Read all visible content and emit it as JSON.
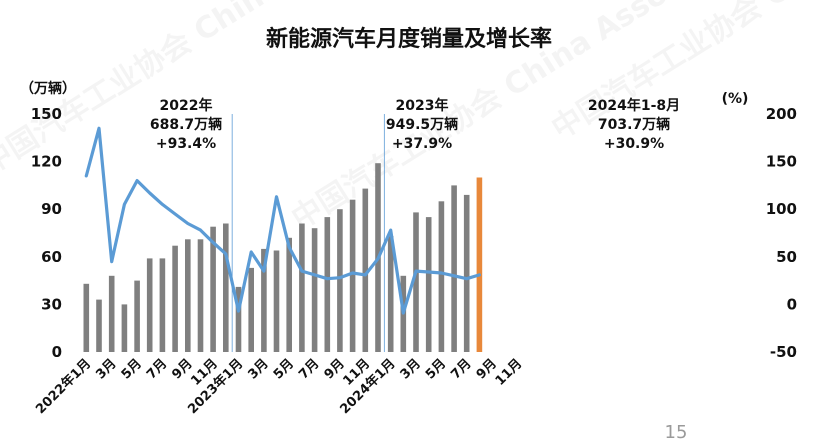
{
  "page_number": "15",
  "chart_data": {
    "type": "bar",
    "title": "新能源汽车月度销量及增长率",
    "left_unit": "（万辆）",
    "right_unit": "(%)",
    "left_axis": {
      "ticks": [
        "150",
        "120",
        "90",
        "60",
        "30",
        "0"
      ],
      "range": [
        0,
        150
      ]
    },
    "right_axis": {
      "ticks": [
        "200",
        "150",
        "100",
        "50",
        "0",
        "-50"
      ],
      "range": [
        -50,
        200
      ]
    },
    "x_tick_labels": [
      "2022年1月",
      "3月",
      "5月",
      "7月",
      "9月",
      "11月",
      "2023年1月",
      "3月",
      "5月",
      "7月",
      "9月",
      "11月",
      "2024年1月",
      "3月",
      "5月",
      "7月",
      "9月",
      "11月"
    ],
    "months": [
      "2022-01",
      "2022-02",
      "2022-03",
      "2022-04",
      "2022-05",
      "2022-06",
      "2022-07",
      "2022-08",
      "2022-09",
      "2022-10",
      "2022-11",
      "2022-12",
      "2023-01",
      "2023-02",
      "2023-03",
      "2023-04",
      "2023-05",
      "2023-06",
      "2023-07",
      "2023-08",
      "2023-09",
      "2023-10",
      "2023-11",
      "2023-12",
      "2024-01",
      "2024-02",
      "2024-03",
      "2024-04",
      "2024-05",
      "2024-06",
      "2024-07",
      "2024-08",
      "2024-09",
      "2024-10",
      "2024-11",
      "2024-12"
    ],
    "series": [
      {
        "type": "bar",
        "values": [
          43,
          33,
          48,
          30,
          45,
          59,
          59,
          67,
          71,
          71,
          79,
          81,
          41,
          53,
          65,
          64,
          72,
          81,
          78,
          85,
          90,
          96,
          103,
          119,
          73,
          48,
          88,
          85,
          95,
          105,
          99,
          110,
          null,
          null,
          null,
          null
        ],
        "colors": {
          "default": "#7f7f7f",
          "highlight": "#e8883a"
        },
        "highlight_index": 31
      },
      {
        "type": "line",
        "axis": "right",
        "color": "#5b9bd5",
        "values": [
          135,
          185,
          45,
          105,
          130,
          117,
          105,
          95,
          85,
          78,
          65,
          53,
          -7,
          55,
          35,
          113,
          60,
          35,
          31,
          27,
          28,
          33,
          31,
          48,
          78,
          -9,
          35,
          34,
          33,
          30,
          27,
          31,
          null,
          null,
          null,
          null
        ]
      }
    ],
    "annotations": [
      {
        "lines": [
          "2022年",
          "688.7万辆",
          "+93.4%"
        ]
      },
      {
        "lines": [
          "2023年",
          "949.5万辆",
          "+37.9%"
        ]
      },
      {
        "lines": [
          "2024年1-8月",
          "703.7万辆",
          "+30.9%"
        ]
      }
    ]
  }
}
